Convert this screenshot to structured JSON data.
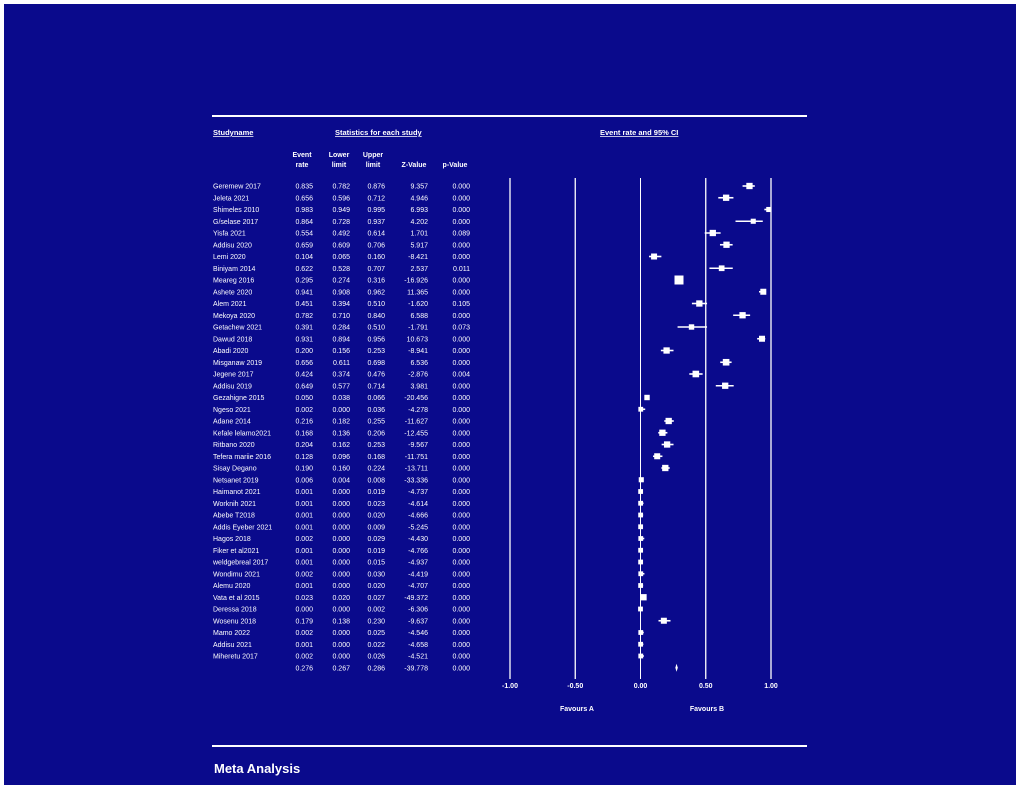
{
  "header": {
    "study_name": "Studyname",
    "stats_title": "Statistics for each study",
    "plot_title": "Event rate and 95% CI",
    "col_event_1": "Event",
    "col_event_2": "rate",
    "col_lower_1": "Lower",
    "col_lower_2": "limit",
    "col_upper_1": "Upper",
    "col_upper_2": "limit",
    "col_z": "Z-Value",
    "col_p": "p-Value"
  },
  "footer": {
    "title": "Meta Analysis"
  },
  "chart_data": {
    "type": "forest",
    "xlim": [
      -1.0,
      1.0
    ],
    "ticks": [
      "-1.00",
      "-0.50",
      "0.00",
      "0.50",
      "1.00"
    ],
    "favours_a": "Favours A",
    "favours_b": "Favours B",
    "studies": [
      {
        "name": "Geremew 2017",
        "rate": "0.835",
        "lower": "0.782",
        "upper": "0.876",
        "z": "9.357",
        "p": "0.000",
        "weight": 0.55
      },
      {
        "name": "Jeleta 2021",
        "rate": "0.656",
        "lower": "0.596",
        "upper": "0.712",
        "z": "4.946",
        "p": "0.000",
        "weight": 0.55
      },
      {
        "name": "Shimeles 2010",
        "rate": "0.983",
        "lower": "0.949",
        "upper": "0.995",
        "z": "6.993",
        "p": "0.000",
        "weight": 0.35
      },
      {
        "name": "G/selase 2017",
        "rate": "0.864",
        "lower": "0.728",
        "upper": "0.937",
        "z": "4.202",
        "p": "0.000",
        "weight": 0.35
      },
      {
        "name": "Yisfa 2021",
        "rate": "0.554",
        "lower": "0.492",
        "upper": "0.614",
        "z": "1.701",
        "p": "0.089",
        "weight": 0.55
      },
      {
        "name": "Addisu 2020",
        "rate": "0.659",
        "lower": "0.609",
        "upper": "0.706",
        "z": "5.917",
        "p": "0.000",
        "weight": 0.55
      },
      {
        "name": "Lemi 2020",
        "rate": "0.104",
        "lower": "0.065",
        "upper": "0.160",
        "z": "-8.421",
        "p": "0.000",
        "weight": 0.5
      },
      {
        "name": "Biniyam 2014",
        "rate": "0.622",
        "lower": "0.528",
        "upper": "0.707",
        "z": "2.537",
        "p": "0.011",
        "weight": 0.45
      },
      {
        "name": "Meareg 2016",
        "rate": "0.295",
        "lower": "0.274",
        "upper": "0.316",
        "z": "-16.926",
        "p": "0.000",
        "weight": 1.0
      },
      {
        "name": "Ashete 2020",
        "rate": "0.941",
        "lower": "0.908",
        "upper": "0.962",
        "z": "11.365",
        "p": "0.000",
        "weight": 0.5
      },
      {
        "name": "Alem 2021",
        "rate": "0.451",
        "lower": "0.394",
        "upper": "0.510",
        "z": "-1.620",
        "p": "0.105",
        "weight": 0.55
      },
      {
        "name": "Mekoya 2020",
        "rate": "0.782",
        "lower": "0.710",
        "upper": "0.840",
        "z": "6.588",
        "p": "0.000",
        "weight": 0.55
      },
      {
        "name": "Getachew 2021",
        "rate": "0.391",
        "lower": "0.284",
        "upper": "0.510",
        "z": "-1.791",
        "p": "0.073",
        "weight": 0.4
      },
      {
        "name": "Dawud 2018",
        "rate": "0.931",
        "lower": "0.894",
        "upper": "0.956",
        "z": "10.673",
        "p": "0.000",
        "weight": 0.5
      },
      {
        "name": "Abadi 2020",
        "rate": "0.200",
        "lower": "0.156",
        "upper": "0.253",
        "z": "-8.941",
        "p": "0.000",
        "weight": 0.55
      },
      {
        "name": "Misganaw 2019",
        "rate": "0.656",
        "lower": "0.611",
        "upper": "0.698",
        "z": "6.536",
        "p": "0.000",
        "weight": 0.6
      },
      {
        "name": "Jegene 2017",
        "rate": "0.424",
        "lower": "0.374",
        "upper": "0.476",
        "z": "-2.876",
        "p": "0.004",
        "weight": 0.6
      },
      {
        "name": "Addisu 2019",
        "rate": "0.649",
        "lower": "0.577",
        "upper": "0.714",
        "z": "3.981",
        "p": "0.000",
        "weight": 0.55
      },
      {
        "name": "Gezahigne 2015",
        "rate": "0.050",
        "lower": "0.038",
        "upper": "0.066",
        "z": "-20.456",
        "p": "0.000",
        "weight": 0.4
      },
      {
        "name": "Ngeso 2021",
        "rate": "0.002",
        "lower": "0.000",
        "upper": "0.036",
        "z": "-4.278",
        "p": "0.000",
        "weight": 0.3
      },
      {
        "name": "Adane 2014",
        "rate": "0.216",
        "lower": "0.182",
        "upper": "0.255",
        "z": "-11.627",
        "p": "0.000",
        "weight": 0.55
      },
      {
        "name": "Kefale lelamo2021",
        "rate": "0.168",
        "lower": "0.136",
        "upper": "0.206",
        "z": "-12.455",
        "p": "0.000",
        "weight": 0.55
      },
      {
        "name": "Ritbano 2020",
        "rate": "0.204",
        "lower": "0.162",
        "upper": "0.253",
        "z": "-9.567",
        "p": "0.000",
        "weight": 0.55
      },
      {
        "name": "Tefera mariie 2016",
        "rate": "0.128",
        "lower": "0.096",
        "upper": "0.168",
        "z": "-11.751",
        "p": "0.000",
        "weight": 0.5
      },
      {
        "name": "Sisay Degano",
        "rate": "0.190",
        "lower": "0.160",
        "upper": "0.224",
        "z": "-13.711",
        "p": "0.000",
        "weight": 0.55
      },
      {
        "name": "Netsanet 2019",
        "rate": "0.006",
        "lower": "0.004",
        "upper": "0.008",
        "z": "-33.336",
        "p": "0.000",
        "weight": 0.35
      },
      {
        "name": "Haimanot 2021",
        "rate": "0.001",
        "lower": "0.000",
        "upper": "0.019",
        "z": "-4.737",
        "p": "0.000",
        "weight": 0.3
      },
      {
        "name": "Worknih 2021",
        "rate": "0.001",
        "lower": "0.000",
        "upper": "0.023",
        "z": "-4.614",
        "p": "0.000",
        "weight": 0.3
      },
      {
        "name": "Abebe T2018",
        "rate": "0.001",
        "lower": "0.000",
        "upper": "0.020",
        "z": "-4.666",
        "p": "0.000",
        "weight": 0.3
      },
      {
        "name": "Addis Eyeber 2021",
        "rate": "0.001",
        "lower": "0.000",
        "upper": "0.009",
        "z": "-5.245",
        "p": "0.000",
        "weight": 0.3
      },
      {
        "name": "Hagos 2018",
        "rate": "0.002",
        "lower": "0.000",
        "upper": "0.029",
        "z": "-4.430",
        "p": "0.000",
        "weight": 0.3
      },
      {
        "name": "Fiker et al2021",
        "rate": "0.001",
        "lower": "0.000",
        "upper": "0.019",
        "z": "-4.766",
        "p": "0.000",
        "weight": 0.3
      },
      {
        "name": "weldgebreal 2017",
        "rate": "0.001",
        "lower": "0.000",
        "upper": "0.015",
        "z": "-4.937",
        "p": "0.000",
        "weight": 0.3
      },
      {
        "name": "Wondimu 2021",
        "rate": "0.002",
        "lower": "0.000",
        "upper": "0.030",
        "z": "-4.419",
        "p": "0.000",
        "weight": 0.3
      },
      {
        "name": "Alemu 2020",
        "rate": "0.001",
        "lower": "0.000",
        "upper": "0.020",
        "z": "-4.707",
        "p": "0.000",
        "weight": 0.3
      },
      {
        "name": "Vata et al 2015",
        "rate": "0.023",
        "lower": "0.020",
        "upper": "0.027",
        "z": "-49.372",
        "p": "0.000",
        "weight": 0.55
      },
      {
        "name": "Deressa 2018",
        "rate": "0.000",
        "lower": "0.000",
        "upper": "0.002",
        "z": "-6.306",
        "p": "0.000",
        "weight": 0.3
      },
      {
        "name": "Wosenu 2018",
        "rate": "0.179",
        "lower": "0.138",
        "upper": "0.230",
        "z": "-9.637",
        "p": "0.000",
        "weight": 0.5
      },
      {
        "name": "Mamo 2022",
        "rate": "0.002",
        "lower": "0.000",
        "upper": "0.025",
        "z": "-4.546",
        "p": "0.000",
        "weight": 0.3
      },
      {
        "name": "Addisu 2021",
        "rate": "0.001",
        "lower": "0.000",
        "upper": "0.022",
        "z": "-4.658",
        "p": "0.000",
        "weight": 0.3
      },
      {
        "name": "Miheretu 2017",
        "rate": "0.002",
        "lower": "0.000",
        "upper": "0.026",
        "z": "-4.521",
        "p": "0.000",
        "weight": 0.3
      }
    ],
    "summary": {
      "rate": "0.276",
      "lower": "0.267",
      "upper": "0.286",
      "z": "-39.778",
      "p": "0.000"
    }
  }
}
